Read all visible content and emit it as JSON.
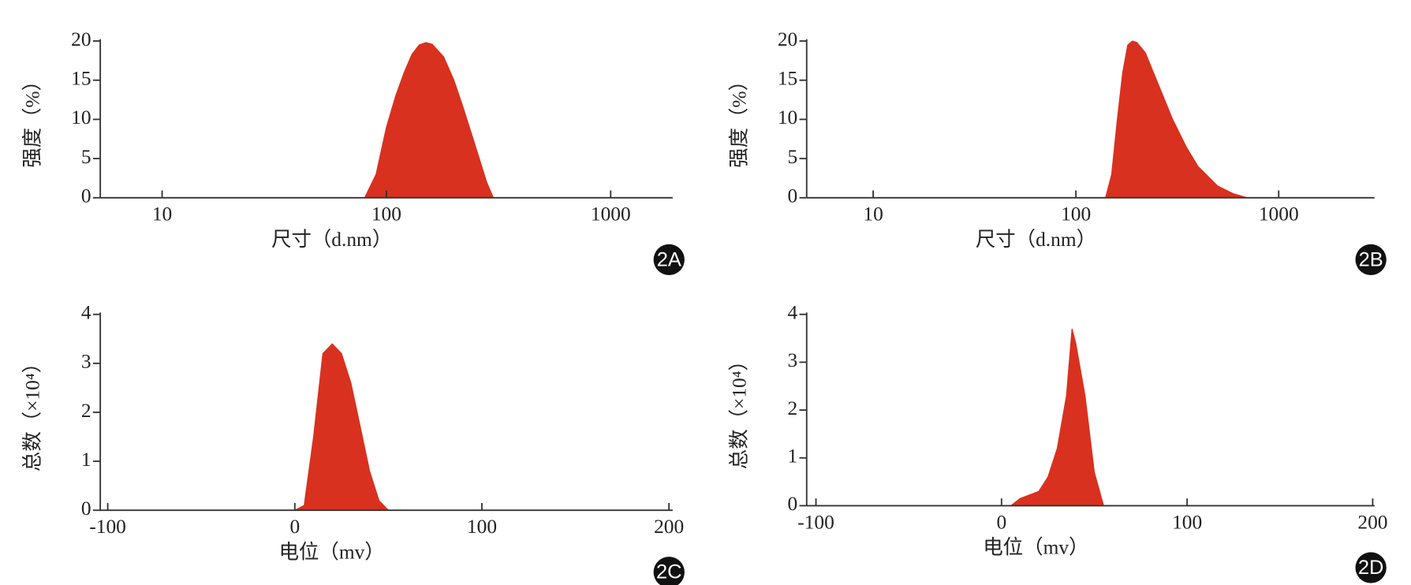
{
  "chart_data": [
    {
      "type": "area",
      "panel_label": "2A",
      "xlabel": "尺寸（d.nm）",
      "ylabel": "强度（%）",
      "log_x": true,
      "color": "#d9311f",
      "x": [
        80,
        90,
        100,
        110,
        120,
        130,
        140,
        150,
        160,
        180,
        200,
        220,
        250,
        280,
        300
      ],
      "values": [
        0,
        3,
        9,
        13,
        16,
        18.3,
        19.5,
        19.8,
        19.6,
        18,
        15,
        11.5,
        6.5,
        2,
        0
      ],
      "xlim": [
        5.3,
        1890
      ],
      "xticks": [
        10,
        100,
        1000
      ],
      "ylim": [
        0,
        20
      ],
      "yticks": [
        0,
        5,
        10,
        15,
        20
      ]
    },
    {
      "type": "area",
      "panel_label": "2B",
      "xlabel": "尺寸（d.nm）",
      "ylabel": "强度（%）",
      "log_x": true,
      "color": "#d9311f",
      "x": [
        140,
        150,
        160,
        170,
        180,
        190,
        200,
        220,
        250,
        300,
        350,
        400,
        500,
        600,
        700
      ],
      "values": [
        0,
        3,
        10,
        16,
        19.5,
        20,
        19.8,
        18.5,
        15,
        10,
        6.5,
        4,
        1.5,
        0.5,
        0
      ],
      "xlim": [
        4.7,
        2970
      ],
      "xticks": [
        10,
        100,
        1000
      ],
      "ylim": [
        0,
        20
      ],
      "yticks": [
        0,
        5,
        10,
        15,
        20
      ]
    },
    {
      "type": "area",
      "panel_label": "2C",
      "xlabel": "电位（mv）",
      "ylabel": "总数（×10⁴）",
      "log_x": false,
      "color": "#d9311f",
      "x": [
        0,
        5,
        10,
        15,
        20,
        25,
        30,
        35,
        40,
        45,
        50
      ],
      "values": [
        0,
        0.1,
        1.5,
        3.2,
        3.4,
        3.2,
        2.6,
        1.7,
        0.8,
        0.2,
        0
      ],
      "xlim": [
        -104,
        202
      ],
      "xticks": [
        -100,
        0,
        100,
        200
      ],
      "ylim": [
        0,
        4
      ],
      "yticks": [
        0,
        1,
        2,
        3,
        4
      ]
    },
    {
      "type": "area",
      "panel_label": "2D",
      "xlabel": "电位（mv）",
      "ylabel": "总数（×10⁴）",
      "log_x": false,
      "color": "#d9311f",
      "x": [
        5,
        10,
        20,
        25,
        30,
        35,
        38,
        40,
        45,
        50,
        55
      ],
      "values": [
        0,
        0.15,
        0.3,
        0.6,
        1.2,
        2.3,
        3.7,
        3.4,
        2.3,
        0.7,
        0
      ],
      "xlim": [
        -105,
        201
      ],
      "xticks": [
        -100,
        0,
        100,
        200
      ],
      "ylim": [
        0,
        4
      ],
      "yticks": [
        0,
        1,
        2,
        3,
        4
      ]
    }
  ]
}
